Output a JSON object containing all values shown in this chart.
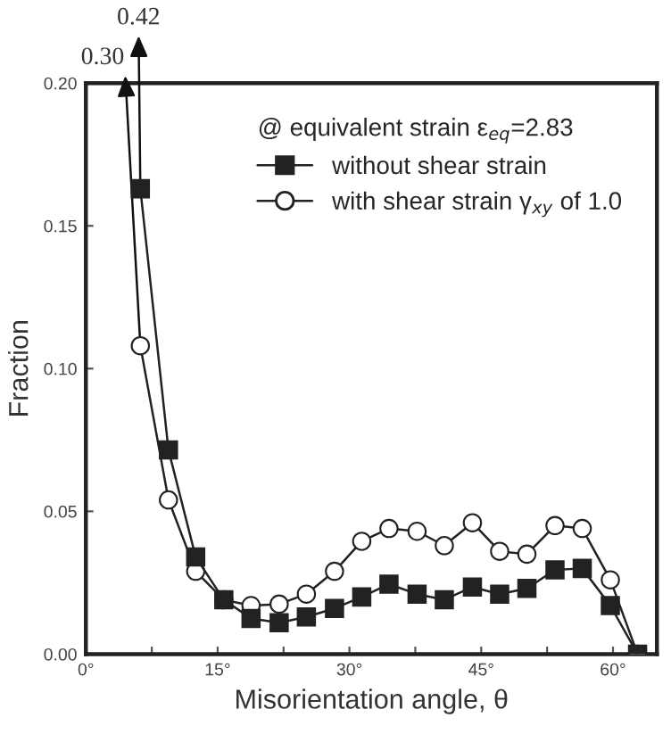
{
  "chart_data": {
    "type": "line",
    "xlabel": "Misorientation angle, θ",
    "ylabel": "Fraction",
    "legend_title": "@ equivalent strain ε$_{eq}$=2.83",
    "x": [
      6.2,
      9.4,
      12.5,
      15.7,
      18.8,
      22.0,
      25.1,
      28.3,
      31.4,
      34.5,
      37.7,
      40.8,
      44.0,
      47.1,
      50.2,
      53.4,
      56.5,
      59.7,
      62.8
    ],
    "series": [
      {
        "name": "without shear strain",
        "color": "#222222",
        "marker": "square",
        "values": [
          0.163,
          0.0715,
          0.034,
          0.019,
          0.0125,
          0.011,
          0.013,
          0.016,
          0.02,
          0.0245,
          0.021,
          0.019,
          0.0235,
          0.021,
          0.023,
          0.0295,
          0.03,
          0.017,
          0.0
        ]
      },
      {
        "name": "with shear strain γ$_{xy}$ of 1.0",
        "color": "#222222",
        "marker": "circle",
        "values": [
          0.108,
          0.054,
          0.029,
          0.019,
          0.017,
          0.0175,
          0.021,
          0.029,
          0.0395,
          0.044,
          0.043,
          0.038,
          0.046,
          0.036,
          0.035,
          0.045,
          0.044,
          0.026,
          0.0
        ]
      }
    ],
    "annotations": [
      {
        "text": "0.42",
        "x": 6.2,
        "y": 0.163
      },
      {
        "text": "0.30",
        "x": 6.2,
        "y": 0.108
      }
    ],
    "xlim": [
      0,
      65
    ],
    "xticks": [
      {
        "value": 0,
        "label": "0°"
      },
      {
        "value": 7.5,
        "label": null
      },
      {
        "value": 15,
        "label": "15°"
      },
      {
        "value": 22.5,
        "label": null
      },
      {
        "value": 30,
        "label": "30°"
      },
      {
        "value": 37.5,
        "label": null
      },
      {
        "value": 45,
        "label": "45°"
      },
      {
        "value": 52.5,
        "label": null
      },
      {
        "value": 60,
        "label": "60°"
      }
    ],
    "ylim": [
      0,
      0.2
    ],
    "yticks": [
      {
        "value": 0,
        "label": "0.00"
      },
      {
        "value": 0.05,
        "label": "0.05"
      },
      {
        "value": 0.1,
        "label": "0.10"
      },
      {
        "value": 0.15,
        "label": "0.15"
      },
      {
        "value": 0.2,
        "label": "0.20"
      }
    ],
    "legend": "top right",
    "grid": false,
    "line_style": "solid"
  }
}
